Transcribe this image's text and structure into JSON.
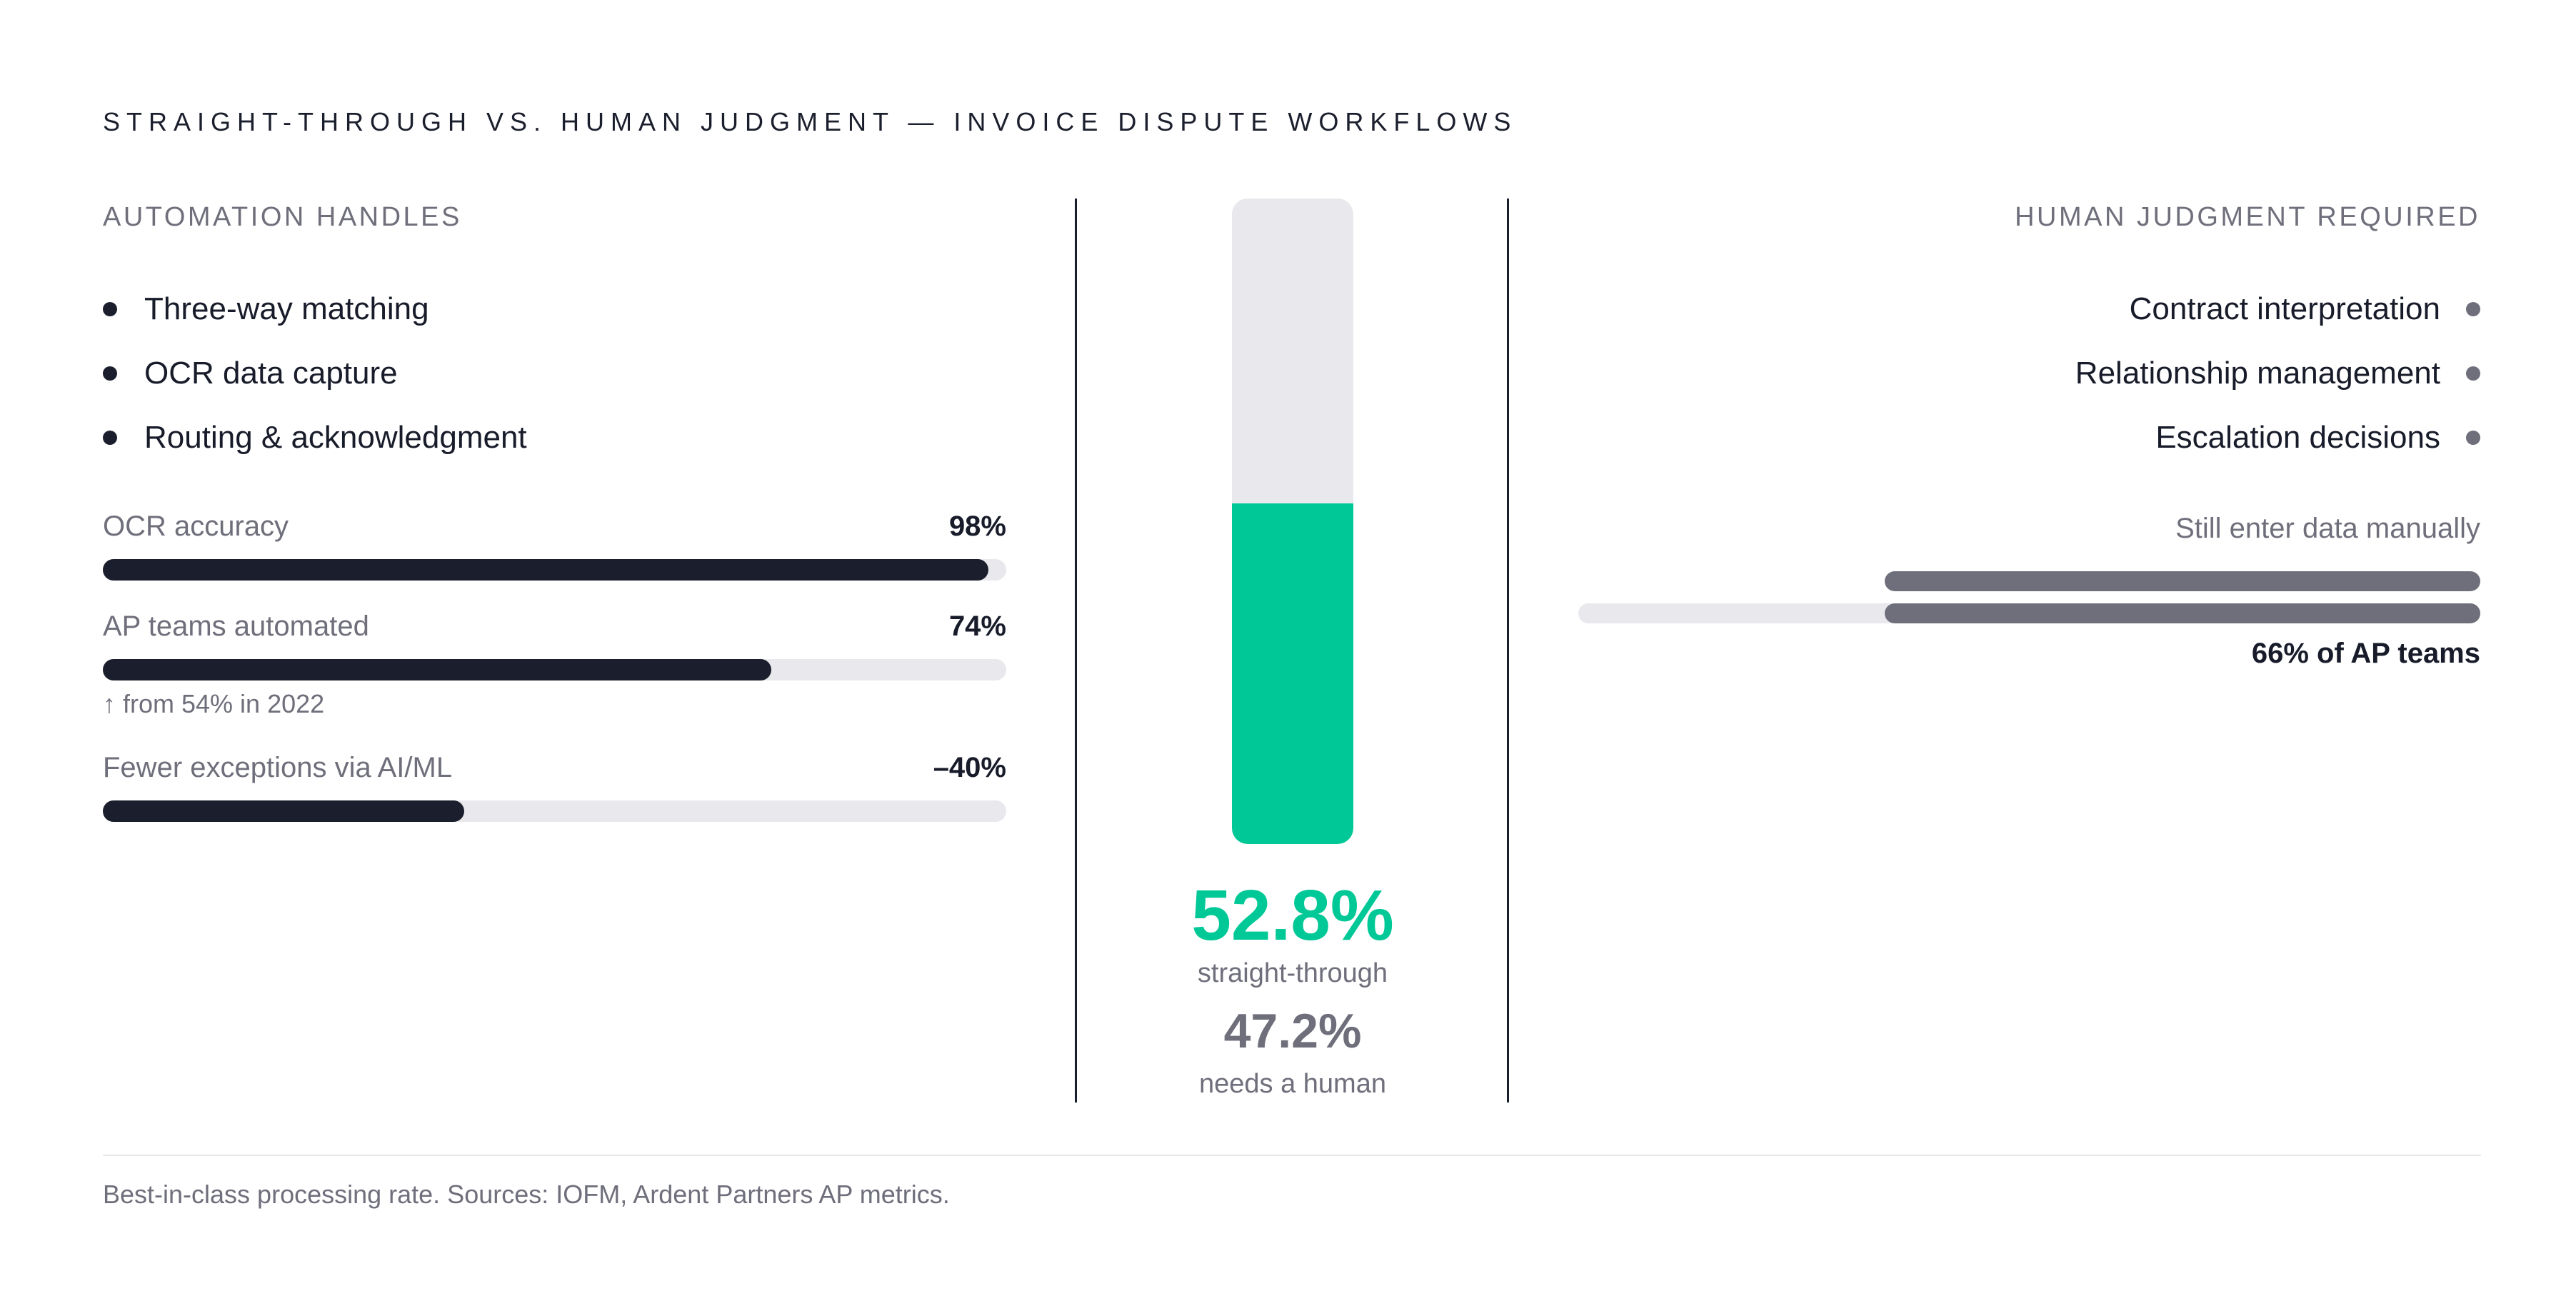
{
  "title": "STRAIGHT-THROUGH VS. HUMAN JUDGMENT — INVOICE DISPUTE WORKFLOWS",
  "automation": {
    "heading": "AUTOMATION HANDLES",
    "items": [
      "Three-way matching",
      "OCR data capture",
      "Routing & acknowledgment"
    ]
  },
  "human": {
    "heading": "HUMAN JUDGMENT REQUIRED",
    "items": [
      "Contract interpretation",
      "Relationship management",
      "Escalation decisions"
    ]
  },
  "colors": {
    "accent": "#00c896",
    "dark": "#1b1f2d",
    "muted": "#6e6f7b",
    "track": "#e8e8ed"
  },
  "chart_data": [
    {
      "type": "bar",
      "orientation": "horizontal",
      "series": [
        {
          "label": "OCR accuracy",
          "value": 98,
          "display": "98%"
        },
        {
          "label": "AP teams automated",
          "value": 74,
          "display": "74%",
          "note": "↑ from 54% in 2022"
        },
        {
          "label": "Fewer exceptions via AI/ML",
          "value": 40,
          "display": "–40%"
        }
      ],
      "xlim": [
        0,
        100
      ]
    },
    {
      "type": "bar",
      "orientation": "vertical",
      "values": {
        "straight_through": 52.8,
        "needs_human": 47.2
      },
      "primary": {
        "display": "52.8%",
        "caption": "straight-through"
      },
      "secondary": {
        "display": "47.2%",
        "caption": "needs a human"
      },
      "ylim": [
        0,
        100
      ]
    },
    {
      "type": "bar",
      "orientation": "horizontal",
      "label": "Still enter data manually",
      "value": 66,
      "display": "66% of AP teams",
      "xlim": [
        0,
        100
      ]
    }
  ],
  "footnote": "Best-in-class processing rate. Sources: IOFM, Ardent Partners AP metrics."
}
